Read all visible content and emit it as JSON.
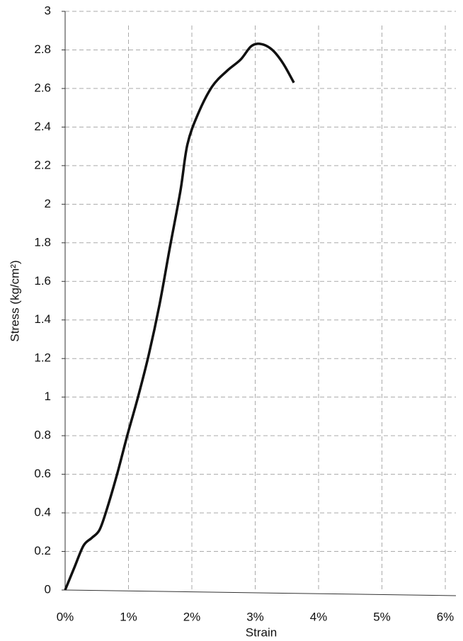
{
  "chart_data": {
    "type": "line",
    "x_label": "Strain",
    "y_label": "Stress (kg/cm²)",
    "xlim": [
      0,
      6
    ],
    "ylim": [
      0,
      3
    ],
    "xticks": [
      {
        "value": 0,
        "label": "0%"
      },
      {
        "value": 1,
        "label": "1%"
      },
      {
        "value": 2,
        "label": "2%"
      },
      {
        "value": 3,
        "label": "3%"
      },
      {
        "value": 4,
        "label": "4%"
      },
      {
        "value": 5,
        "label": "5%"
      },
      {
        "value": 6,
        "label": "6%"
      }
    ],
    "yticks": [
      0,
      0.2,
      0.4,
      0.6,
      0.8,
      1,
      1.2,
      1.4,
      1.6,
      1.8,
      2,
      2.2,
      2.4,
      2.6,
      2.8,
      3
    ],
    "grid": true,
    "series": [
      {
        "color": "#111111",
        "x": [
          0,
          0.15,
          0.29,
          0.42,
          0.54,
          0.65,
          0.82,
          0.98,
          1.15,
          1.32,
          1.49,
          1.65,
          1.82,
          1.93,
          2.1,
          2.32,
          2.55,
          2.77,
          2.94,
          3.1,
          3.27,
          3.44,
          3.61
        ],
        "values": [
          0,
          0.12,
          0.23,
          0.27,
          0.31,
          0.41,
          0.6,
          0.8,
          1.0,
          1.22,
          1.48,
          1.77,
          2.07,
          2.31,
          2.47,
          2.61,
          2.69,
          2.75,
          2.82,
          2.83,
          2.8,
          2.73,
          2.63
        ]
      }
    ]
  }
}
